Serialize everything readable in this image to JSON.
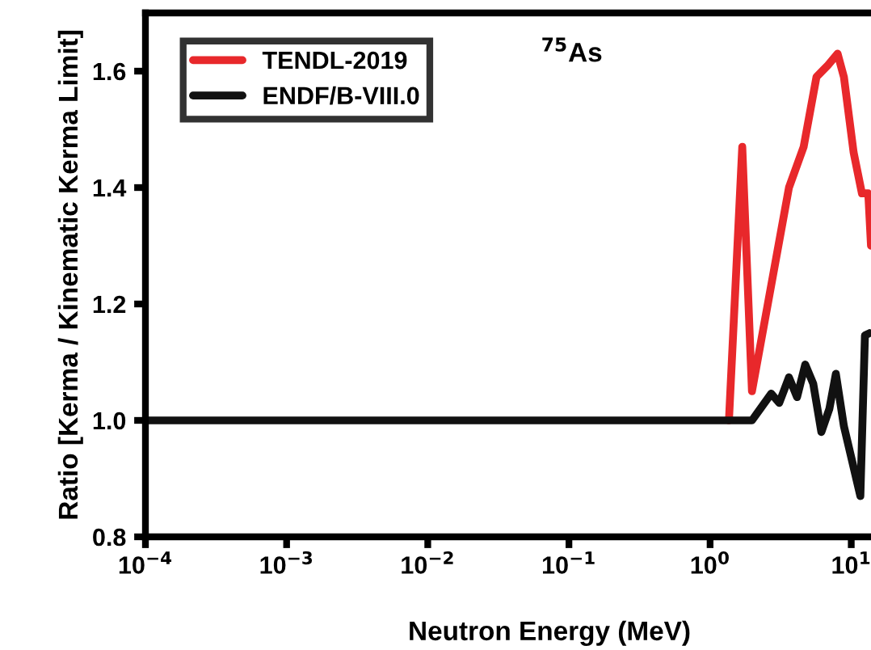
{
  "chart_data": {
    "type": "line",
    "xlabel": "Neutron Energy (MeV)",
    "ylabel": "Ratio [Kerma / Kinematic Kerma Limit]",
    "annotations": [
      "$^{75}$As"
    ],
    "log": "x",
    "xlim": [
      0.0001,
      13.8
    ],
    "ylim": [
      0.8,
      1.7
    ],
    "xticks": [
      {
        "value": 0.0001,
        "label": "10$^{−4}$"
      },
      {
        "value": 0.001,
        "label": "10$^{−3}$"
      },
      {
        "value": 0.01,
        "label": "10$^{−2}$"
      },
      {
        "value": 0.1,
        "label": "10$^{−1}$"
      },
      {
        "value": 1,
        "label": "10$^{0}$"
      },
      {
        "value": 10,
        "label": "10$^{1}$"
      }
    ],
    "yticks": [
      0.8,
      {
        "value": 1,
        "label": "1.0"
      },
      1.2,
      1.4,
      1.6
    ],
    "grid": false,
    "legend": "top left",
    "marker": "none",
    "line_style": "solid",
    "series": [
      {
        "name": "TENDL-2019",
        "color": "#e8282b",
        "x": [
          1.36,
          1.69,
          1.98,
          3.62,
          4.6,
          5.67,
          6.82,
          8.0,
          8.87,
          10.4,
          11.9,
          13.2,
          13.8
        ],
        "values": [
          1.0,
          1.47,
          1.05,
          1.4,
          1.47,
          1.59,
          1.61,
          1.63,
          1.59,
          1.46,
          1.39,
          1.39,
          1.3
        ]
      },
      {
        "name": "ENDF/B-VIII.0",
        "color": "#111111",
        "x": [
          0.0001,
          1.98,
          2.71,
          3.09,
          3.62,
          4.13,
          4.72,
          5.38,
          6.14,
          7.0,
          7.78,
          8.87,
          11.6,
          12.5,
          13.5
        ],
        "values": [
          1.0,
          1.0,
          1.046,
          1.03,
          1.074,
          1.04,
          1.096,
          1.063,
          0.98,
          1.02,
          1.08,
          0.99,
          0.87,
          1.146,
          1.15
        ]
      }
    ]
  }
}
